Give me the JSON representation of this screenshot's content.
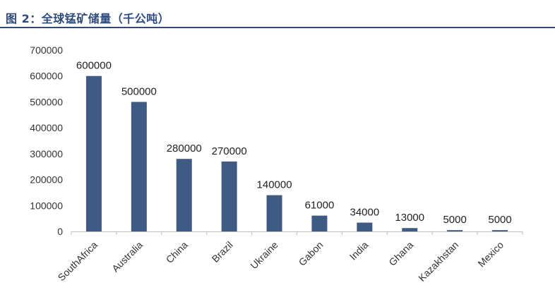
{
  "figure": {
    "title": "图 2：全球锰矿储量（千公吨）"
  },
  "colors": {
    "bar": "#3f5a84",
    "title": "#2e4a7d",
    "axis": "#bfbfbf"
  },
  "chart_data": {
    "type": "bar",
    "title": "全球锰矿储量（千公吨）",
    "xlabel": "",
    "ylabel": "",
    "ylim": [
      0,
      700000
    ],
    "yticks": [
      "0",
      "100000",
      "200000",
      "300000",
      "400000",
      "500000",
      "600000",
      "700000"
    ],
    "grid": false,
    "legend": "none",
    "categories": [
      "SouthAfrica",
      "Australia",
      "China",
      "Brazil",
      "Ukraine",
      "Gabon",
      "India",
      "Ghana",
      "Kazakhstan",
      "Mexico"
    ],
    "values": [
      600000,
      500000,
      280000,
      270000,
      140000,
      61000,
      34000,
      13000,
      5000,
      5000
    ],
    "value_labels": [
      "600000",
      "500000",
      "280000",
      "270000",
      "140000",
      "61000",
      "34000",
      "13000",
      "5000",
      "5000"
    ]
  }
}
